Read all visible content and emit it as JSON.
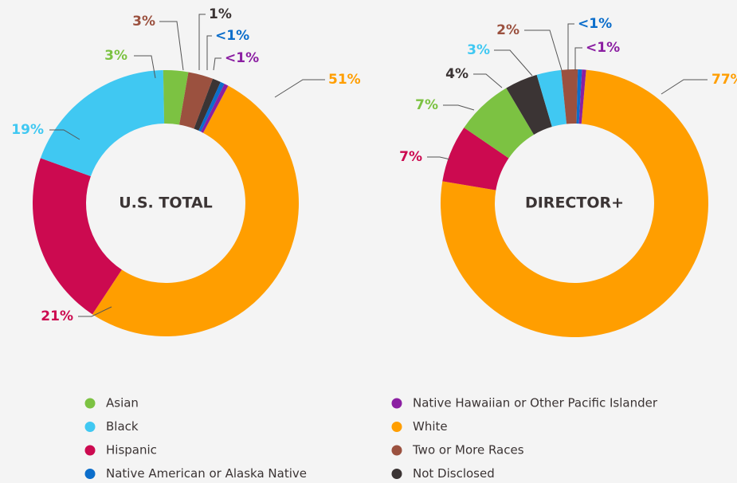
{
  "chart_data": [
    {
      "type": "donut",
      "title": "U.S. TOTAL",
      "categories": [
        "White",
        "Hispanic",
        "Black",
        "Asian",
        "Two or More Races",
        "Not Disclosed",
        "Native American or Alaska Native",
        "Native Hawaiian or Other Pacific Islander"
      ],
      "values": [
        51,
        21,
        19,
        3,
        3,
        1,
        0.5,
        0.5
      ],
      "value_labels": [
        "51%",
        "21%",
        "19%",
        "3%",
        "3%",
        "1%",
        "<1%",
        "<1%"
      ],
      "colors": [
        "#ff9e00",
        "#cc0a50",
        "#40c8f2",
        "#7cc242",
        "#9b513f",
        "#3b3434",
        "#0c6ecb",
        "#8b1fa2"
      ]
    },
    {
      "type": "donut",
      "title": "DIRECTOR+",
      "categories": [
        "White",
        "Hispanic",
        "Asian",
        "Not Disclosed",
        "Black",
        "Two or More Races",
        "Native American or Alaska Native",
        "Native Hawaiian or Other Pacific Islander"
      ],
      "values": [
        77,
        7,
        7,
        4,
        3,
        2,
        0.5,
        0.5
      ],
      "value_labels": [
        "77%",
        "7%",
        "7%",
        "4%",
        "3%",
        "2%",
        "<1%",
        "<1%"
      ],
      "colors": [
        "#ff9e00",
        "#cc0a50",
        "#7cc242",
        "#3b3434",
        "#40c8f2",
        "#9b513f",
        "#0c6ecb",
        "#8b1fa2"
      ]
    }
  ],
  "legend": [
    {
      "name": "Asian",
      "color": "#7cc242"
    },
    {
      "name": "Black",
      "color": "#40c8f2"
    },
    {
      "name": "Hispanic",
      "color": "#cc0a50"
    },
    {
      "name": "Native American or Alaska Native",
      "color": "#0c6ecb"
    },
    {
      "name": "Native Hawaiian or Other Pacific Islander",
      "color": "#8b1fa2"
    },
    {
      "name": "White",
      "color": "#ff9e00"
    },
    {
      "name": "Two or More Races",
      "color": "#9b513f"
    },
    {
      "name": "Not Disclosed",
      "color": "#3b3434"
    }
  ]
}
